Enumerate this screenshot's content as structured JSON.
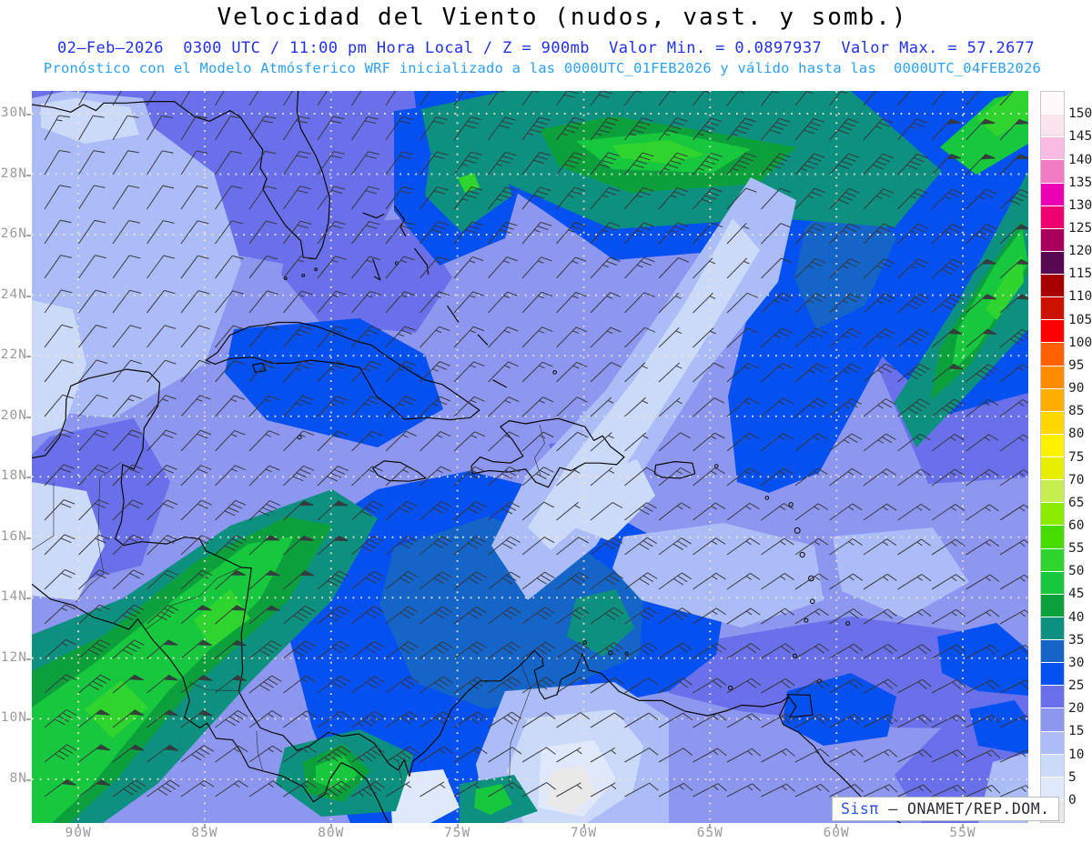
{
  "title": "Velocidad del Viento (nudos, vast. y somb.)",
  "header": {
    "line1": "02–Feb–2026  0300 UTC / 11:00 pm Hora Local / Z = 900mb  Valor Min. = 0.0897937  Valor Max. = 57.2677",
    "line2": "Pronóstico con el Modelo Atmósferico WRF inicializado a las 0000UTC_01FEB2026 y válido hasta las  0000UTC_04FEB2026"
  },
  "watermark": {
    "brand": "Sisπ",
    "org_text": "– ONAMET/REP.DOM."
  },
  "axes": {
    "lat_labels": [
      "30N",
      "28N",
      "26N",
      "24N",
      "22N",
      "20N",
      "18N",
      "16N",
      "14N",
      "12N",
      "10N",
      "8N"
    ],
    "lat_values": [
      30,
      28,
      26,
      24,
      22,
      20,
      18,
      16,
      14,
      12,
      10,
      8
    ],
    "lon_labels": [
      "90W",
      "85W",
      "80W",
      "75W",
      "70W",
      "65W",
      "60W",
      "55W"
    ],
    "lon_values": [
      90,
      85,
      80,
      75,
      70,
      65,
      60,
      55
    ]
  },
  "colorbar": {
    "labels": [
      "150",
      "145",
      "140",
      "135",
      "130",
      "125",
      "120",
      "115",
      "110",
      "105",
      "100",
      "95",
      "90",
      "85",
      "80",
      "75",
      "70",
      "65",
      "60",
      "55",
      "50",
      "45",
      "40",
      "35",
      "30",
      "25",
      "20",
      "15",
      "10",
      "5",
      "0"
    ],
    "colors_top_to_bottom": [
      "#FFF9FB",
      "#FCE4EE",
      "#F8BCE4",
      "#F07CC4",
      "#EC00B4",
      "#EE0070",
      "#A8005C",
      "#580850",
      "#A80000",
      "#CC1100",
      "#FF0000",
      "#FF6000",
      "#FF8C00",
      "#FFAE00",
      "#FFD800",
      "#FFF200",
      "#E8EE00",
      "#C6EE4E",
      "#8CEC00",
      "#46DC00",
      "#2FD42E",
      "#17C83E",
      "#0CA03C",
      "#0E9080",
      "#1565C8",
      "#0550F0",
      "#6A70E9",
      "#8D97F0",
      "#ABBCF6",
      "#CBDAF9",
      "#E0E9FB",
      "#E9E9E9"
    ]
  },
  "chart_data": {
    "type": "heatmap",
    "title": "Velocidad del Viento (nudos, vast. y somb.)",
    "units": "nudos (knots)",
    "level": "Z = 900mb",
    "valid_time": "02–Feb–2026 0300 UTC / 11:00 pm Hora Local",
    "model_run": "WRF inicializado a las 0000UTC_01FEB2026, válido hasta las 0000UTC_04FEB2026",
    "value_min": 0.0897937,
    "value_max": 57.2677,
    "x_ticks": [
      "90W",
      "85W",
      "80W",
      "75W",
      "70W",
      "65W",
      "60W",
      "55W"
    ],
    "y_ticks": [
      "30N",
      "28N",
      "26N",
      "24N",
      "22N",
      "20N",
      "18N",
      "16N",
      "14N",
      "12N",
      "10N",
      "8N"
    ],
    "scale_levels_knots": [
      0,
      5,
      10,
      15,
      20,
      25,
      30,
      35,
      40,
      45,
      50,
      55,
      60,
      65,
      70,
      75,
      80,
      85,
      90,
      95,
      100,
      105,
      110,
      115,
      120,
      125,
      130,
      135,
      140,
      145,
      150
    ],
    "legend_position": "right"
  },
  "grid_color": "#EFE6CC",
  "barb_color": "#36363b"
}
